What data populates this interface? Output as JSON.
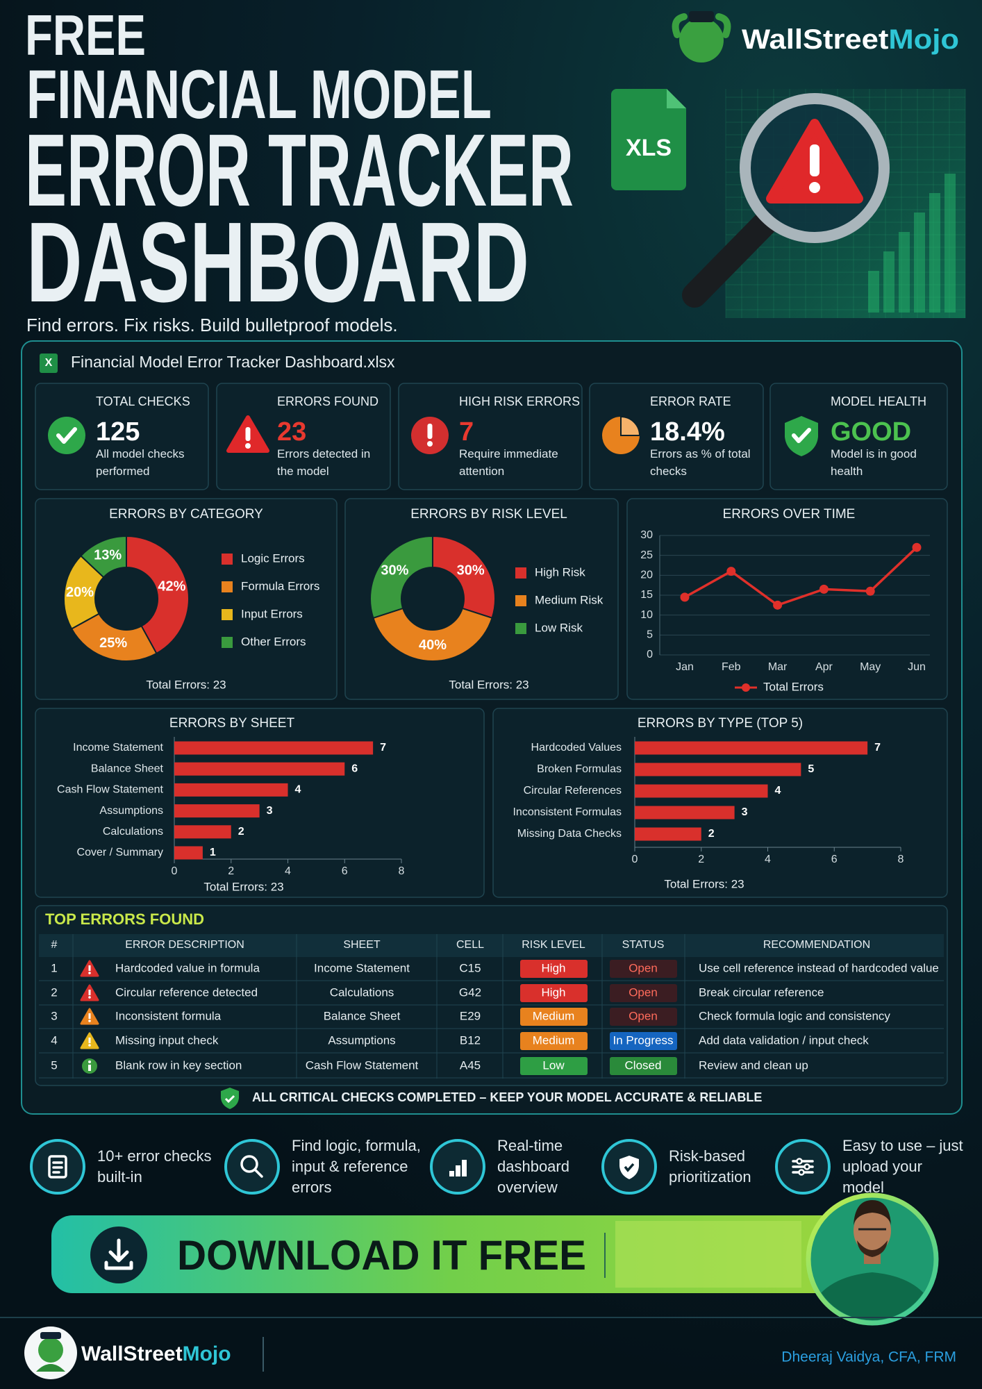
{
  "header": {
    "free": "FREE",
    "line1": "FINANCIAL MODEL",
    "line2": "ERROR TRACKER",
    "line3": "DASHBOARD",
    "tagline": "Find errors. Fix risks. Build bulletproof models.",
    "brand": {
      "main": "WallStreet",
      "accent": "Mojo"
    },
    "file_badge": "XLS"
  },
  "dashboard": {
    "file_icon": "X",
    "filename": "Financial Model Error Tracker Dashboard.xlsx"
  },
  "kpis": [
    {
      "title": "TOTAL CHECKS",
      "value": 125,
      "note": "All model checks performed",
      "color": "#ffffff"
    },
    {
      "title": "ERRORS FOUND",
      "value": 23,
      "note": "Errors detected in the model",
      "color": "#e8392f"
    },
    {
      "title": "HIGH RISK ERRORS",
      "value": 7,
      "note": "Require immediate attention",
      "color": "#e8392f"
    },
    {
      "title": "ERROR RATE",
      "value": "18.4%",
      "note": "Errors as % of total checks",
      "color": "#ffffff"
    },
    {
      "title": "MODEL HEALTH",
      "value": "GOOD",
      "note": "Model is in good health",
      "color": "#4cc24f"
    }
  ],
  "chart_data": [
    {
      "type": "pie",
      "title": "ERRORS BY CATEGORY",
      "categories": [
        "Logic Errors",
        "Formula Errors",
        "Input Errors",
        "Other Errors"
      ],
      "values": [
        42,
        25,
        20,
        13
      ],
      "value_labels": [
        "42%",
        "25%",
        "20%",
        "13%"
      ],
      "colors": [
        "#d9302c",
        "#e8821e",
        "#e8b71c",
        "#3a9a3e"
      ],
      "note": "Total Errors: 23"
    },
    {
      "type": "pie",
      "title": "ERRORS BY RISK LEVEL",
      "categories": [
        "High Risk",
        "Medium Risk",
        "Low Risk"
      ],
      "values": [
        30,
        40,
        30
      ],
      "value_labels": [
        "30%",
        "40%",
        "30%"
      ],
      "colors": [
        "#d9302c",
        "#e8821e",
        "#3a9a3e"
      ],
      "note": "Total Errors: 23"
    },
    {
      "type": "line",
      "title": "ERRORS OVER TIME",
      "categories": [
        "Jan",
        "Feb",
        "Mar",
        "Apr",
        "May",
        "Jun"
      ],
      "series": [
        {
          "name": "Total Errors",
          "color": "#e0302a",
          "values": [
            14.5,
            21,
            12.5,
            16.5,
            16,
            27
          ]
        }
      ],
      "ylim": [
        0,
        30
      ],
      "yticks": [
        0,
        5,
        10,
        15,
        20,
        25,
        30
      ],
      "grid": true
    },
    {
      "type": "bar",
      "orientation": "horizontal",
      "title": "ERRORS BY SHEET",
      "categories": [
        "Income Statement",
        "Balance Sheet",
        "Cash Flow Statement",
        "Assumptions",
        "Calculations",
        "Cover / Summary"
      ],
      "values": [
        7,
        6,
        4,
        3,
        2,
        1
      ],
      "color": "#d9302c",
      "xlim": [
        0,
        8
      ],
      "xticks": [
        0,
        2,
        4,
        6,
        8
      ],
      "note": "Total Errors: 23"
    },
    {
      "type": "bar",
      "orientation": "horizontal",
      "title": "ERRORS BY TYPE (TOP 5)",
      "categories": [
        "Hardcoded Values",
        "Broken Formulas",
        "Circular References",
        "Inconsistent Formulas",
        "Missing Data Checks"
      ],
      "values": [
        7,
        5,
        4,
        3,
        2
      ],
      "color": "#d9302c",
      "xlim": [
        0,
        8
      ],
      "xticks": [
        0,
        2,
        4,
        6,
        8
      ],
      "note": "Total Errors: 23"
    }
  ],
  "table": {
    "title": "TOP ERRORS FOUND",
    "columns": [
      "#",
      "ERROR DESCRIPTION",
      "SHEET",
      "CELL",
      "RISK LEVEL",
      "STATUS",
      "RECOMMENDATION"
    ],
    "rows": [
      [
        1,
        "Hardcoded value in formula",
        "Income Statement",
        "C15",
        "High",
        "Open",
        "Use cell reference instead of hardcoded value"
      ],
      [
        2,
        "Circular reference detected",
        "Calculations",
        "G42",
        "High",
        "Open",
        "Break circular reference"
      ],
      [
        3,
        "Inconsistent formula",
        "Balance Sheet",
        "E29",
        "Medium",
        "Open",
        "Check formula logic and consistency"
      ],
      [
        4,
        "Missing input check",
        "Assumptions",
        "B12",
        "Medium",
        "In Progress",
        "Add data validation / input check"
      ],
      [
        5,
        "Blank row in key section",
        "Cash Flow Statement",
        "A45",
        "Low",
        "Closed",
        "Review and clean up"
      ]
    ],
    "row_styles": [
      {
        "icon": "triangle",
        "icon_color": "#d9302c",
        "risk_color": "#d9302c",
        "status_color": "#3b1d22",
        "status_text_color": "#ff6b5b"
      },
      {
        "icon": "triangle",
        "icon_color": "#d9302c",
        "risk_color": "#d9302c",
        "status_color": "#3b1d22",
        "status_text_color": "#ff6b5b"
      },
      {
        "icon": "triangle",
        "icon_color": "#e8821e",
        "risk_color": "#e8821e",
        "status_color": "#3b1d22",
        "status_text_color": "#ff6b5b"
      },
      {
        "icon": "triangle",
        "icon_color": "#e8b71c",
        "risk_color": "#e8821e",
        "status_color": "#1565c0",
        "status_text_color": "#ffffff"
      },
      {
        "icon": "circle",
        "icon_color": "#3a9a3e",
        "risk_color": "#2e9e44",
        "status_color": "#2a8a3a",
        "status_text_color": "#ffffff"
      }
    ]
  },
  "banner": "ALL CRITICAL CHECKS COMPLETED – KEEP YOUR MODEL ACCURATE & RELIABLE",
  "features": [
    "10+ error checks built-in",
    "Find logic, formula, input & reference errors",
    "Real-time dashboard overview",
    "Risk-based prioritization",
    "Easy to use – just upload your model"
  ],
  "cta": "DOWNLOAD IT FREE",
  "footer": {
    "brand": {
      "main": "WallStreet",
      "accent": "Mojo"
    },
    "author": "Dheeraj Vaidya, CFA, FRM"
  }
}
